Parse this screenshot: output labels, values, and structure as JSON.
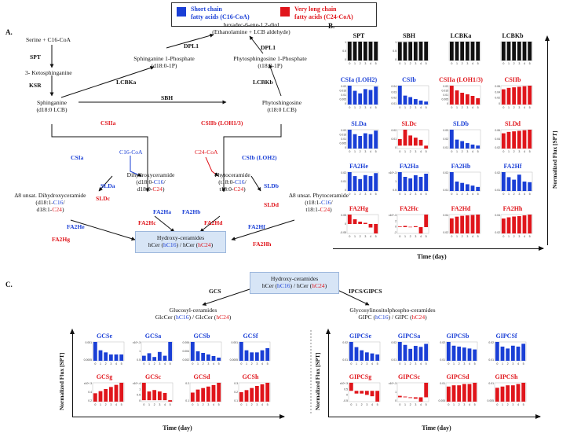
{
  "legend": {
    "short_label": "Short chain\nfatty acids (C16-CoA)",
    "long_label": "Very long chain\nfatty acids (C24-CoA)",
    "short_color": "#1a3fd6",
    "long_color": "#e0151b"
  },
  "panelA": {
    "label": "A.",
    "serine": "Serine + C16-CoA",
    "spt": "SPT",
    "keto": "3- Ketosphinganine",
    "ksr": "KSR",
    "sphinganine": "Sphinganine",
    "sphinganine_sub": "(d18:0 LCB)",
    "s1p": "Sphinganine 1-Phosphate",
    "s1p_sub": "(d18:0-1P)",
    "hexa": "hexadec-6-ene-1,2-diol",
    "hexa_sub": "(Ethanolamine + LCB aldehyde)",
    "dpl1a": "DPL1",
    "dpl1b": "DPL1",
    "p1p": "Phytosphingosine 1-Phosphate",
    "p1p_sub": "(t18:0-1P)",
    "lcbka": "LCBKa",
    "lcbkb": "LCBKb",
    "sbh": "SBH",
    "phyto": "Phytoshingosine",
    "phyto_sub": "(t18:0 LCB)",
    "csiia": "CSIIa",
    "csiib": "CSIIb (LOH1/3)",
    "c16": "C16-CoA",
    "c24": "C24-CoA",
    "csia": "CSIa",
    "csib": "CSIb (LOH2)",
    "dhc": "Dihydroxyceramide",
    "dhc_1": "(d18:0-",
    "dhc_c16": "C16",
    "dhc_1e": "/",
    "dhc_2": "d18:0-",
    "dhc_c24": "C24",
    "dhc_2e": ")",
    "phc": "Phytoceramide",
    "phc_1": "(t18:0-",
    "phc_c16": "C16",
    "phc_1e": "/",
    "phc_2": "t18:0-",
    "phc_c24": "C24",
    "phc_2e": ")",
    "slda": "SLDa",
    "sldc": "SLDc",
    "sldb": "SLDb",
    "sldd": "SLDd",
    "d8dhc": "Δ8 unsat. Dihydroxyceramide",
    "d8dhc_1": "(d18:1-",
    "d8dhc_c16": "C16",
    "d8dhc_1e": "/",
    "d8dhc_2": "d18:1-",
    "d8dhc_c24": "C24",
    "d8dhc_2e": ")",
    "d8phc": "Δ8 unsat. Phytoceramide",
    "d8phc_1": "(t18:1-",
    "d8phc_c16": "C16",
    "d8phc_1e": "/",
    "d8phc_2": "t18:1-",
    "d8phc_c24": "C24",
    "d8phc_2e": ")",
    "fa2ha": "FA2Ha",
    "fa2hb": "FA2Hb",
    "fa2hc": "FA2Hc",
    "fa2hd": "FA2Hd",
    "fa2he": "FA2He",
    "fa2hf": "FA2Hf",
    "fa2hg": "FA2Hg",
    "fa2hh": "FA2Hh",
    "hcer": "Hydroxy-ceramides",
    "hcer_1": "hCer (",
    "hcer_c16": "hC16",
    "hcer_mid": ") / hCer (",
    "hcer_c24": "hC24",
    "hcer_end": ")"
  },
  "panelB": {
    "label": "B.",
    "xlabel": "Time (day)",
    "ylabel": "Normalized Flux [SPT]"
  },
  "panelC": {
    "label": "C.",
    "hcer": "Hydroxy-ceramides",
    "hcer_1": "hCer (",
    "hcer_c16": "hC16",
    "hcer_mid": ") / hCer (",
    "hcer_c24": "hC24",
    "hcer_end": ")",
    "gcs": "GCS",
    "ipcs": "IPCS/GIPCS",
    "glc": "Glucosyl-ceramides",
    "glc_1": "GlcCer (",
    "glc_c16": "hC16",
    "glc_mid": ") / GlcCer (",
    "glc_c24": "hC24",
    "glc_end": ")",
    "gipc": "Glycosylinositolphospho-ceramides",
    "gipc_1": "GIPC (",
    "gipc_c16": "hC16",
    "gipc_mid": ") / GIPC (",
    "gipc_c24": "hC24",
    "gipc_end": ")",
    "xlabel": "Time (day)",
    "ylabel": "Normalized Flux [SPT]"
  },
  "chart_data": [
    {
      "panel": "B",
      "type": "bar",
      "title": "SPT",
      "color": "#111111",
      "categories": [
        "0",
        "1",
        "2",
        "3",
        "4",
        "5"
      ],
      "values": [
        1,
        1,
        1,
        1,
        1,
        1
      ],
      "yticks": [
        "1",
        "0.5",
        "0"
      ]
    },
    {
      "panel": "B",
      "type": "bar",
      "title": "SBH",
      "color": "#111111",
      "categories": [
        "0",
        "1",
        "2",
        "3",
        "4",
        "5"
      ],
      "values": [
        0.9,
        0.9,
        0.91,
        0.91,
        0.92,
        0.92
      ],
      "yticks": [
        "1",
        "0.5",
        "0"
      ]
    },
    {
      "panel": "B",
      "type": "bar",
      "title": "LCBKa",
      "color": "#111111",
      "categories": [
        "0",
        "1",
        "2",
        "3",
        "4",
        "5"
      ],
      "values": [
        0.9,
        0.9,
        0.9,
        0.9,
        0.9,
        0.9
      ],
      "yticks": []
    },
    {
      "panel": "B",
      "type": "bar",
      "title": "LCBKb",
      "color": "#111111",
      "categories": [
        "0",
        "1",
        "2",
        "3",
        "4",
        "5"
      ],
      "values": [
        0.9,
        0.9,
        0.9,
        0.9,
        0.9,
        0.9
      ],
      "yticks": []
    },
    {
      "panel": "B",
      "type": "bar",
      "title": "CSIa (LOH2)",
      "color": "#1a3fd6",
      "categories": [
        "0",
        "1",
        "2",
        "3",
        "4",
        "5"
      ],
      "values": [
        0.022,
        0.016,
        0.013,
        0.018,
        0.017,
        0.021
      ],
      "yticks": [
        "0.02",
        "0.015",
        "0.01",
        "0.005",
        "0"
      ]
    },
    {
      "panel": "B",
      "type": "bar",
      "title": "CSIb",
      "color": "#1a3fd6",
      "categories": [
        "0",
        "1",
        "2",
        "3",
        "4",
        "5"
      ],
      "values": [
        0.038,
        0.018,
        0.015,
        0.011,
        0.008,
        0.006
      ],
      "yticks": [
        "0.04",
        "0.03",
        "0.02",
        "0.01"
      ]
    },
    {
      "panel": "B",
      "type": "bar",
      "title": "CSIIa (LOH1/3)",
      "color": "#e0151b",
      "categories": [
        "0",
        "1",
        "2",
        "3",
        "4",
        "5"
      ],
      "values": [
        0.024,
        0.018,
        0.015,
        0.013,
        0.011,
        0.008
      ],
      "yticks": [
        "0.02",
        "0.015",
        "0.01",
        "0.005",
        "0"
      ]
    },
    {
      "panel": "B",
      "type": "bar",
      "title": "CSIIb",
      "color": "#e0151b",
      "categories": [
        "0",
        "1",
        "2",
        "3",
        "4",
        "5"
      ],
      "values": [
        0.055,
        0.06,
        0.062,
        0.064,
        0.066,
        0.068
      ],
      "yticks": [
        "0.06",
        "0.04",
        "0.02",
        "0"
      ]
    },
    {
      "panel": "B",
      "type": "bar",
      "title": "SLDa",
      "color": "#1a3fd6",
      "categories": [
        "0",
        "1",
        "2",
        "3",
        "4",
        "5"
      ],
      "values": [
        0.021,
        0.016,
        0.014,
        0.017,
        0.016,
        0.02
      ],
      "yticks": [
        "0.02",
        "0.015",
        "0.01",
        "0.005",
        "0"
      ]
    },
    {
      "panel": "B",
      "type": "bar",
      "title": "SLDc",
      "color": "#e0151b",
      "categories": [
        "0",
        "1",
        "2",
        "3",
        "4",
        "5"
      ],
      "values": [
        0.009,
        0.022,
        0.014,
        0.011,
        0.008,
        -0.004
      ],
      "yticks": [
        "0.02",
        "0.01",
        "0"
      ]
    },
    {
      "panel": "B",
      "type": "bar",
      "title": "SLDb",
      "color": "#1a3fd6",
      "categories": [
        "0",
        "1",
        "2",
        "3",
        "4",
        "5"
      ],
      "values": [
        0.038,
        0.018,
        0.015,
        0.011,
        0.008,
        0.006
      ],
      "yticks": [
        "0.03",
        "0.02",
        "0.01"
      ]
    },
    {
      "panel": "B",
      "type": "bar",
      "title": "SLDd",
      "color": "#e0151b",
      "categories": [
        "0",
        "1",
        "2",
        "3",
        "4",
        "5"
      ],
      "values": [
        0.055,
        0.06,
        0.062,
        0.064,
        0.066,
        0.068
      ],
      "yticks": [
        "0.06",
        "0.04",
        "0.02"
      ]
    },
    {
      "panel": "B",
      "type": "bar",
      "title": "FA2He",
      "color": "#1a3fd6",
      "categories": [
        "0",
        "1",
        "2",
        "3",
        "4",
        "5"
      ],
      "values": [
        0.019,
        0.015,
        0.012,
        0.016,
        0.015,
        0.018
      ],
      "yticks": [
        "0.02",
        "0.01",
        "0"
      ]
    },
    {
      "panel": "B",
      "type": "bar",
      "title": "FA2Ha",
      "color": "#1a3fd6",
      "categories": [
        "0",
        "1",
        "2",
        "3",
        "4",
        "5"
      ],
      "values": [
        0.0012,
        0.0009,
        0.0008,
        0.001,
        0.0009,
        0.0011
      ],
      "yticks": [
        "x10^-3",
        "1",
        "0.5"
      ]
    },
    {
      "panel": "B",
      "type": "bar",
      "title": "FA2Hb",
      "color": "#1a3fd6",
      "categories": [
        "0",
        "1",
        "2",
        "3",
        "4",
        "5"
      ],
      "values": [
        0.028,
        0.014,
        0.012,
        0.01,
        0.008,
        0.006
      ],
      "yticks": [
        "0.02",
        "0.01"
      ]
    },
    {
      "panel": "B",
      "type": "bar",
      "title": "FA2Hf",
      "color": "#1a3fd6",
      "categories": [
        "0",
        "1",
        "2",
        "3",
        "4",
        "5"
      ],
      "values": [
        0.03,
        0.022,
        0.018,
        0.026,
        0.015,
        0.014
      ],
      "yticks": [
        "0.02",
        "0.01"
      ]
    },
    {
      "panel": "B",
      "type": "bar",
      "title": "FA2Hg",
      "color": "#e0151b",
      "categories": [
        "0",
        "1",
        "2",
        "3",
        "4",
        "5"
      ],
      "values": [
        0.004,
        0.002,
        0.001,
        0.0005,
        -0.0015,
        -0.004
      ],
      "yticks": [
        "0.05",
        "0",
        "-0.05"
      ]
    },
    {
      "panel": "B",
      "type": "bar",
      "title": "FA2Hc",
      "color": "#e0151b",
      "categories": [
        "0",
        "1",
        "2",
        "3",
        "4",
        "5"
      ],
      "values": [
        0.0002,
        0.0004,
        0.0001,
        0.0003,
        -0.002,
        0.004
      ],
      "yticks": [
        "x10^-3",
        "2",
        "0",
        "-2"
      ]
    },
    {
      "panel": "B",
      "type": "bar",
      "title": "FA2Hd",
      "color": "#e0151b",
      "categories": [
        "0",
        "1",
        "2",
        "3",
        "4",
        "5"
      ],
      "values": [
        0.036,
        0.04,
        0.042,
        0.043,
        0.044,
        0.045
      ],
      "yticks": [
        "0.04",
        "0.02"
      ]
    },
    {
      "panel": "B",
      "type": "bar",
      "title": "FA2Hh",
      "color": "#e0151b",
      "categories": [
        "0",
        "1",
        "2",
        "3",
        "4",
        "5"
      ],
      "values": [
        0.038,
        0.041,
        0.043,
        0.044,
        0.046,
        0.048
      ],
      "yticks": [
        "0.04",
        "0.02"
      ]
    },
    {
      "panel": "C",
      "type": "bar",
      "title": "GCSe",
      "color": "#1a3fd6",
      "categories": [
        "0",
        "1",
        "2",
        "3",
        "4",
        "5"
      ],
      "values": [
        0.0009,
        0.0005,
        0.0004,
        0.0003,
        0.0003,
        0.0003
      ],
      "yticks": [
        "0.001",
        "0.0005"
      ]
    },
    {
      "panel": "C",
      "type": "bar",
      "title": "GCSa",
      "color": "#1a3fd6",
      "categories": [
        "0",
        "1",
        "2",
        "3",
        "4",
        "5"
      ],
      "values": [
        0.2,
        0.3,
        0.15,
        0.35,
        0.2,
        0.75
      ],
      "yticks": [
        "x10^-3",
        "1",
        "0.5"
      ]
    },
    {
      "panel": "C",
      "type": "bar",
      "title": "GCSb",
      "color": "#1a3fd6",
      "categories": [
        "0",
        "1",
        "2",
        "3",
        "4",
        "5"
      ],
      "values": [
        0.006,
        0.003,
        0.0025,
        0.002,
        0.0015,
        0.001
      ],
      "yticks": [
        "0.006",
        "0.004",
        "0.002"
      ]
    },
    {
      "panel": "C",
      "type": "bar",
      "title": "GCSf",
      "color": "#1a3fd6",
      "categories": [
        "0",
        "1",
        "2",
        "3",
        "4",
        "5"
      ],
      "values": [
        0.0009,
        0.0005,
        0.0004,
        0.0004,
        0.0005,
        0.0006
      ],
      "yticks": [
        "0.001",
        "0.0005"
      ]
    },
    {
      "panel": "C",
      "type": "bar",
      "title": "GCSg",
      "color": "#e0151b",
      "categories": [
        "0",
        "1",
        "2",
        "3",
        "4",
        "5"
      ],
      "values": [
        0.2,
        0.25,
        0.3,
        0.35,
        0.4,
        0.45
      ],
      "yticks": [
        "x10^-3",
        "0.4",
        "0.2"
      ]
    },
    {
      "panel": "C",
      "type": "bar",
      "title": "GCSc",
      "color": "#e0151b",
      "categories": [
        "0",
        "1",
        "2",
        "3",
        "4",
        "5"
      ],
      "values": [
        1.2,
        0.6,
        0.7,
        0.6,
        0.5,
        -0.1
      ],
      "yticks": [
        "x10^-4",
        "1",
        "0.5",
        "0"
      ]
    },
    {
      "panel": "C",
      "type": "bar",
      "title": "GCSd",
      "color": "#e0151b",
      "categories": [
        "0",
        "1",
        "2",
        "3",
        "4",
        "5"
      ],
      "values": [
        0.12,
        0.16,
        0.18,
        0.2,
        0.22,
        0.25
      ],
      "yticks": [
        "0.2",
        "0.1"
      ]
    },
    {
      "panel": "C",
      "type": "bar",
      "title": "GCSh",
      "color": "#e0151b",
      "categories": [
        "0",
        "1",
        "2",
        "3",
        "4",
        "5"
      ],
      "values": [
        0.18,
        0.22,
        0.26,
        0.3,
        0.33,
        0.36
      ],
      "yticks": [
        "0.3",
        "0.2",
        "0.1"
      ]
    },
    {
      "panel": "C",
      "type": "bar",
      "title": "GIPCSe",
      "color": "#1a3fd6",
      "categories": [
        "0",
        "1",
        "2",
        "3",
        "4",
        "5"
      ],
      "values": [
        0.018,
        0.013,
        0.01,
        0.008,
        0.007,
        0.006
      ],
      "yticks": [
        "0.02",
        "0.01"
      ]
    },
    {
      "panel": "C",
      "type": "bar",
      "title": "GIPCSa",
      "color": "#1a3fd6",
      "categories": [
        "0",
        "1",
        "2",
        "3",
        "4",
        "5"
      ],
      "values": [
        0.019,
        0.016,
        0.012,
        0.015,
        0.014,
        0.017
      ],
      "yticks": [
        "0.02",
        "0.01"
      ]
    },
    {
      "panel": "C",
      "type": "bar",
      "title": "GIPCSb",
      "color": "#1a3fd6",
      "categories": [
        "0",
        "1",
        "2",
        "3",
        "4",
        "5"
      ],
      "values": [
        0.02,
        0.016,
        0.015,
        0.014,
        0.013,
        0.012
      ],
      "yticks": [
        "0.02",
        "0.01"
      ]
    },
    {
      "panel": "C",
      "type": "bar",
      "title": "GIPCSf",
      "color": "#1a3fd6",
      "categories": [
        "0",
        "1",
        "2",
        "3",
        "4",
        "5"
      ],
      "values": [
        0.02,
        0.015,
        0.013,
        0.016,
        0.015,
        0.018
      ],
      "yticks": [
        "0.02",
        "0.01"
      ]
    },
    {
      "panel": "C",
      "type": "bar",
      "title": "GIPCSg",
      "color": "#e0151b",
      "categories": [
        "0",
        "1",
        "2",
        "3",
        "4",
        "5"
      ],
      "values": [
        0.3,
        -0.1,
        -0.1,
        -0.15,
        -0.2,
        -0.4
      ],
      "yticks": [
        "x10^-3",
        "0.5",
        "0",
        "-0.5"
      ]
    },
    {
      "panel": "C",
      "type": "bar",
      "title": "GIPCSc",
      "color": "#e0151b",
      "categories": [
        "0",
        "1",
        "2",
        "3",
        "4",
        "5"
      ],
      "values": [
        0.1,
        0.05,
        -0.05,
        -0.1,
        -0.3,
        1.0
      ],
      "yticks": [
        "x10^-3",
        "1",
        "0"
      ]
    },
    {
      "panel": "C",
      "type": "bar",
      "title": "GIPCSd",
      "color": "#e0151b",
      "categories": [
        "0",
        "1",
        "2",
        "3",
        "4",
        "5"
      ],
      "values": [
        0.012,
        0.013,
        0.013,
        0.014,
        0.014,
        0.015
      ],
      "yticks": [
        "0.01",
        "0.005"
      ]
    },
    {
      "panel": "C",
      "type": "bar",
      "title": "GIPCSh",
      "color": "#e0151b",
      "categories": [
        "0",
        "1",
        "2",
        "3",
        "4",
        "5"
      ],
      "values": [
        0.011,
        0.012,
        0.013,
        0.013,
        0.014,
        0.015
      ],
      "yticks": [
        "0.01",
        "0.005"
      ]
    }
  ]
}
